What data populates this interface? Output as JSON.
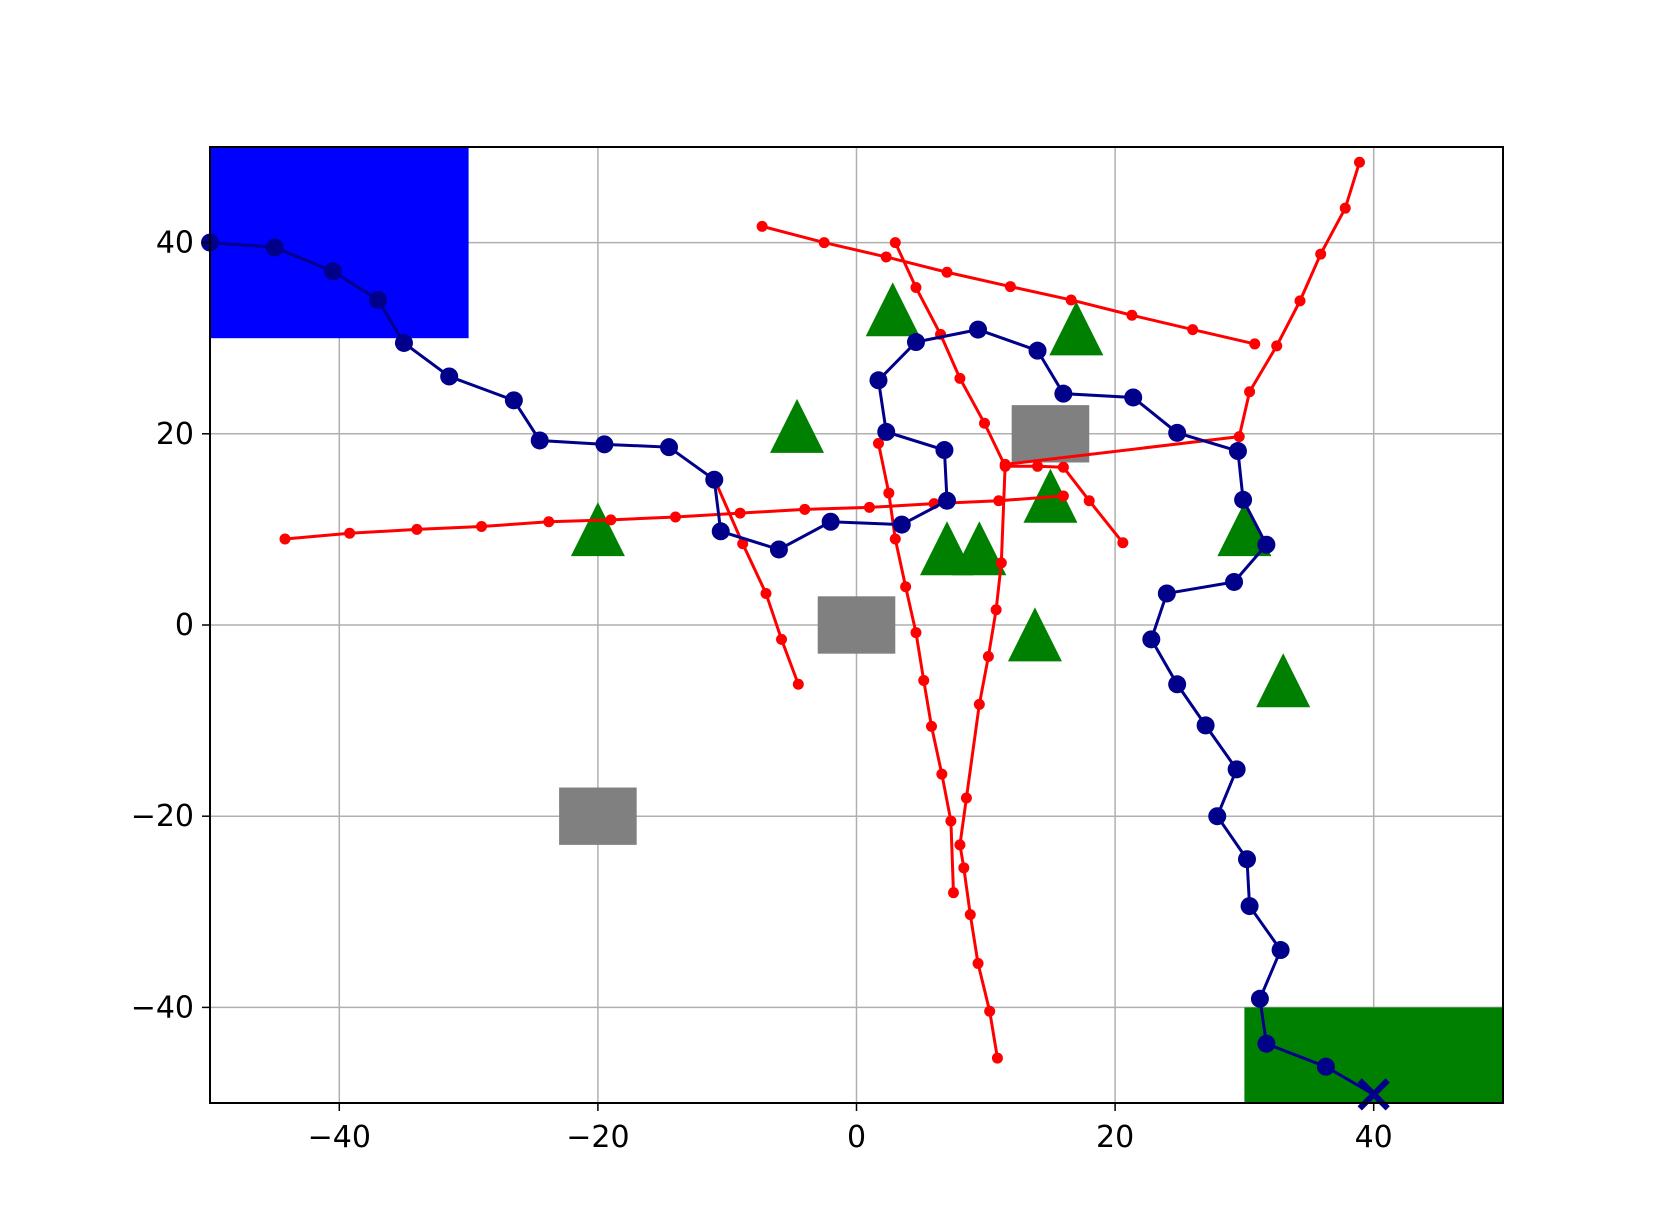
{
  "chart_data": {
    "type": "scatter",
    "title": "",
    "xlabel": "",
    "ylabel": "",
    "xlim": [
      -50,
      50
    ],
    "ylim": [
      -50,
      50
    ],
    "grid": true,
    "x_ticks": [
      -40,
      -20,
      0,
      20,
      40
    ],
    "x_tick_labels": [
      "−40",
      "−20",
      "0",
      "20",
      "40"
    ],
    "y_ticks": [
      40,
      20,
      0,
      -20,
      -40
    ],
    "y_tick_labels": [
      "40",
      "20",
      "0",
      "−20",
      "−40"
    ],
    "regions": [
      {
        "kind": "start",
        "x": [
          -50,
          -30
        ],
        "y": [
          30,
          50
        ],
        "color": "#0000ff"
      },
      {
        "kind": "goal",
        "x": [
          30,
          50
        ],
        "y": [
          -50,
          -40
        ],
        "color": "#008000"
      }
    ],
    "static_obstacles": {
      "shape": "square",
      "color": "#808080",
      "half_size": 3,
      "centers": [
        [
          0,
          0
        ],
        [
          -20,
          -20
        ],
        [
          15,
          20
        ]
      ]
    },
    "landmarks": {
      "shape": "triangle",
      "color": "#008000",
      "points": [
        [
          2.8,
          32.5
        ],
        [
          17,
          30.5
        ],
        [
          -4.6,
          20.3
        ],
        [
          -20,
          9.5
        ],
        [
          15,
          13
        ],
        [
          7,
          7.5
        ],
        [
          9.5,
          7.5
        ],
        [
          30,
          9.5
        ],
        [
          13.8,
          -1.5
        ],
        [
          33,
          -6.3
        ]
      ]
    },
    "path": {
      "color": "#00008b",
      "end_marker": "x",
      "points": [
        [
          -50,
          40
        ],
        [
          -45,
          39.5
        ],
        [
          -40.5,
          37
        ],
        [
          -37,
          34
        ],
        [
          -35,
          29.5
        ],
        [
          -31.5,
          26
        ],
        [
          -26.5,
          23.5
        ],
        [
          -24.5,
          19.3
        ],
        [
          -19.5,
          18.9
        ],
        [
          -14.5,
          18.6
        ],
        [
          -11,
          15.2
        ],
        [
          -10.5,
          9.8
        ],
        [
          -6,
          7.9
        ],
        [
          -2,
          10.8
        ],
        [
          3.5,
          10.5
        ],
        [
          7,
          13
        ],
        [
          6.8,
          18.3
        ],
        [
          2.3,
          20.2
        ],
        [
          1.7,
          25.6
        ],
        [
          4.6,
          29.6
        ],
        [
          9.4,
          30.9
        ],
        [
          14,
          28.7
        ],
        [
          16,
          24.2
        ],
        [
          21.4,
          23.8
        ],
        [
          24.8,
          20.1
        ],
        [
          29.5,
          18.2
        ],
        [
          29.9,
          13.1
        ],
        [
          31.7,
          8.4
        ],
        [
          29.2,
          4.5
        ],
        [
          24,
          3.3
        ],
        [
          22.8,
          -1.5
        ],
        [
          24.8,
          -6.2
        ],
        [
          27,
          -10.5
        ],
        [
          29.4,
          -15.1
        ],
        [
          27.9,
          -20
        ],
        [
          30.2,
          -24.5
        ],
        [
          30.4,
          -29.4
        ],
        [
          32.8,
          -34
        ],
        [
          31.2,
          -39.1
        ],
        [
          31.7,
          -43.8
        ],
        [
          36.3,
          -46.2
        ],
        [
          40,
          -49.1
        ]
      ]
    },
    "dynamic_obstacles": {
      "color": "#ff0000",
      "tracks": [
        {
          "points": [
            [
              -44.2,
              9
            ],
            [
              -39.2,
              9.6
            ],
            [
              -34,
              10
            ],
            [
              -29,
              10.3
            ],
            [
              -23.8,
              10.8
            ],
            [
              -19,
              11
            ],
            [
              -14,
              11.3
            ],
            [
              -9,
              11.7
            ],
            [
              -4,
              12.1
            ],
            [
              1,
              12.3
            ],
            [
              6,
              12.7
            ],
            [
              11,
              13
            ],
            [
              16,
              13.5
            ]
          ]
        },
        {
          "points": [
            [
              -11,
              15.3
            ],
            [
              -8.8,
              8.5
            ],
            [
              -7,
              3.3
            ],
            [
              -5.8,
              -1.5
            ],
            [
              -4.5,
              -6.2
            ]
          ]
        },
        {
          "points": [
            [
              -7.3,
              41.7
            ],
            [
              -2.5,
              40
            ],
            [
              2.3,
              38.5
            ],
            [
              7,
              36.9
            ],
            [
              11.9,
              35.4
            ],
            [
              16.6,
              34
            ],
            [
              21.3,
              32.4
            ],
            [
              26,
              30.9
            ],
            [
              30.8,
              29.4
            ]
          ]
        },
        {
          "points": [
            [
              3,
              40
            ],
            [
              4.6,
              35.3
            ],
            [
              6.5,
              30.4
            ],
            [
              8,
              25.8
            ],
            [
              9.9,
              21.1
            ],
            [
              11.5,
              16.6
            ],
            [
              14,
              16.6
            ],
            [
              16,
              16.5
            ],
            [
              18,
              13
            ],
            [
              20.6,
              8.6
            ]
          ]
        },
        {
          "points": [
            [
              1.7,
              19
            ],
            [
              2.5,
              13.8
            ],
            [
              3,
              9
            ],
            [
              3.8,
              4
            ],
            [
              4.6,
              -0.8
            ],
            [
              5.2,
              -5.8
            ],
            [
              5.8,
              -10.6
            ],
            [
              6.6,
              -15.6
            ],
            [
              7.3,
              -20.5
            ],
            [
              7.5,
              -28
            ]
          ]
        },
        {
          "points": [
            [
              10.9,
              -45.3
            ],
            [
              10.3,
              -40.4
            ],
            [
              9.4,
              -35.4
            ],
            [
              8.8,
              -30.3
            ],
            [
              8.3,
              -25.4
            ],
            [
              8,
              -23
            ],
            [
              8.5,
              -18.1
            ],
            [
              9.5,
              -8.3
            ],
            [
              10.2,
              -3.3
            ],
            [
              10.8,
              1.6
            ],
            [
              11.2,
              6.5
            ],
            [
              11.5,
              16.8
            ],
            [
              29.6,
              19.7
            ],
            [
              30.4,
              24.4
            ],
            [
              32.5,
              29.2
            ],
            [
              34.3,
              33.9
            ],
            [
              35.9,
              38.8
            ],
            [
              37.8,
              43.6
            ],
            [
              38.9,
              48.4
            ]
          ]
        }
      ]
    }
  }
}
